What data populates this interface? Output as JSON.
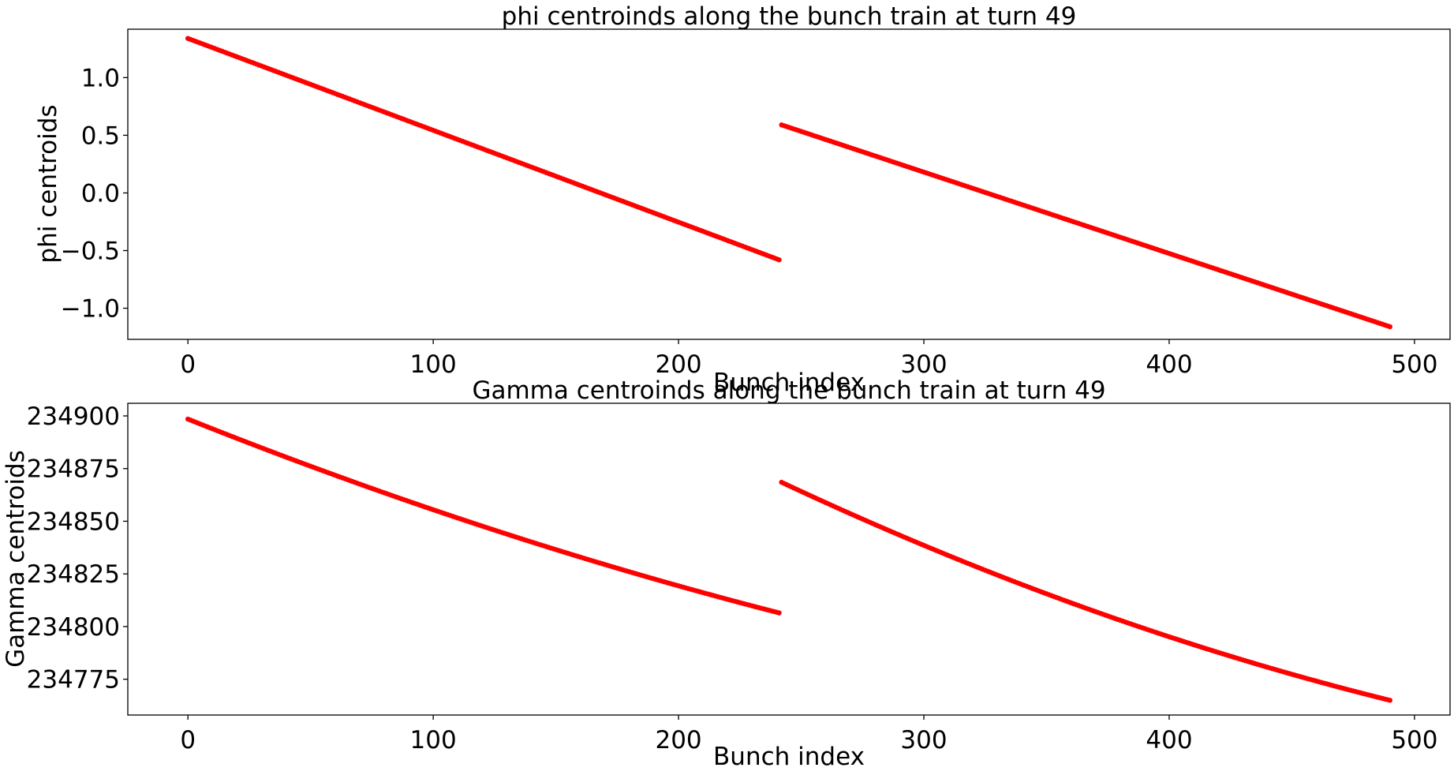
{
  "chart_data": [
    {
      "type": "scatter",
      "title": "phi centroinds along the bunch train at turn 49",
      "xlabel": "Bunch index",
      "ylabel": "phi centroids",
      "xlim": [
        -24.5,
        514.5
      ],
      "ylim": [
        -1.27,
        1.42
      ],
      "xticks": [
        0,
        100,
        200,
        300,
        400,
        500
      ],
      "xtick_labels": [
        "0",
        "100",
        "200",
        "300",
        "400",
        "500"
      ],
      "yticks": [
        -1.0,
        -0.5,
        0.0,
        0.5,
        1.0
      ],
      "ytick_labels": [
        "−1.0",
        "−0.5",
        "0.0",
        "0.5",
        "1.0"
      ],
      "grid": false,
      "color": "#ff0000",
      "series": [
        {
          "x_start": 0,
          "x_end": 241,
          "y_start": 1.34,
          "y_end": -0.58
        },
        {
          "x_start": 242,
          "x_end": 490,
          "y_start": 0.59,
          "y_end": -1.16
        }
      ]
    },
    {
      "type": "scatter",
      "title": "Gamma centroinds along the bunch train at turn 49",
      "xlabel": "Bunch index",
      "ylabel": "Gamma centroids",
      "xlim": [
        -24.5,
        514.5
      ],
      "ylim": [
        234758,
        234906
      ],
      "xticks": [
        0,
        100,
        200,
        300,
        400,
        500
      ],
      "xtick_labels": [
        "0",
        "100",
        "200",
        "300",
        "400",
        "500"
      ],
      "yticks": [
        234775,
        234800,
        234825,
        234850,
        234875,
        234900
      ],
      "ytick_labels": [
        "234775",
        "234800",
        "234825",
        "234850",
        "234875",
        "234900"
      ],
      "grid": false,
      "color": "#ff0000",
      "series": [
        {
          "x_start": 0,
          "x_end": 241,
          "y_start": 234898.5,
          "y_end": 234806.5,
          "curvature": -5
        },
        {
          "x_start": 242,
          "x_end": 490,
          "y_start": 234868.5,
          "y_end": 234765,
          "curvature": -8
        }
      ]
    }
  ]
}
